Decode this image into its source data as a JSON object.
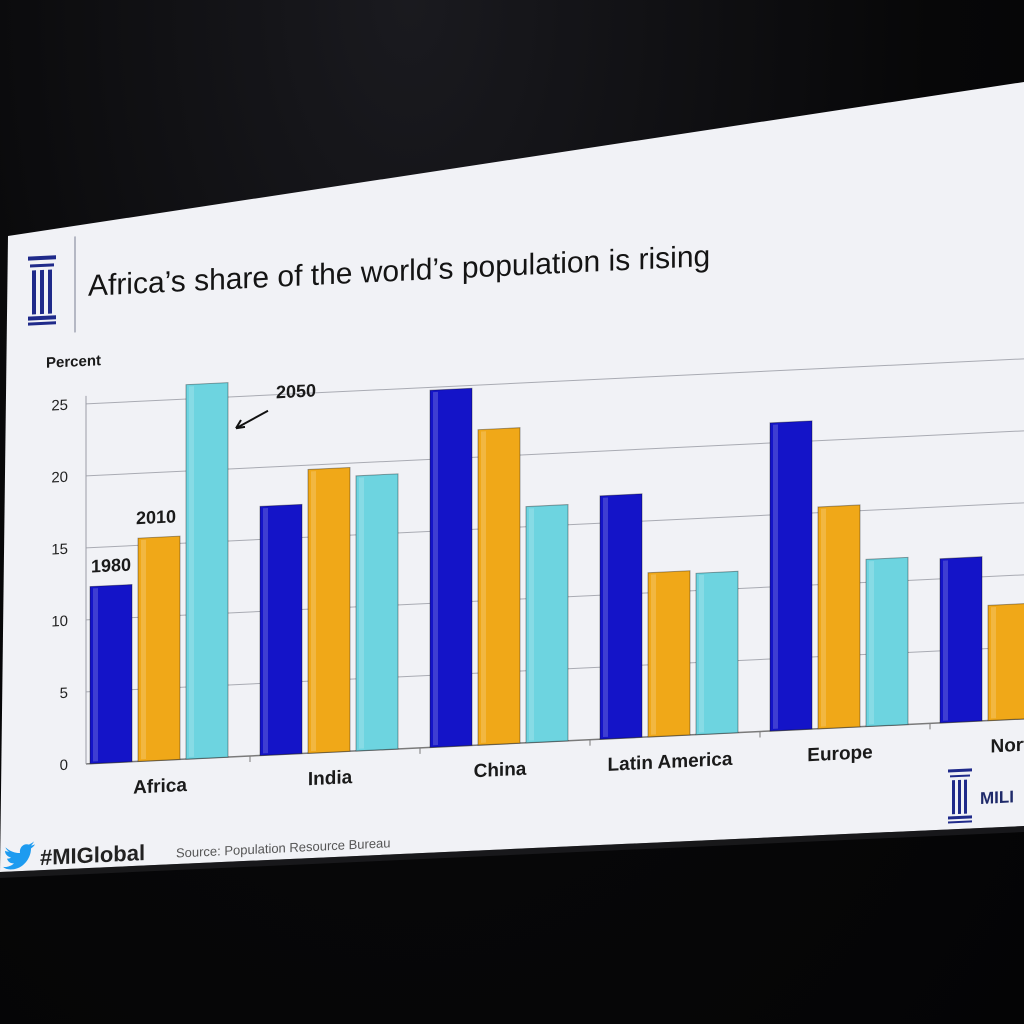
{
  "slide": {
    "title": "Africa’s share of the world’s population is rising",
    "hashtag": "#MIGlobal",
    "source": "Source: Population Resource Bureau",
    "brand_text": "MILI"
  },
  "colors": {
    "series_1980": "#1414c8",
    "series_2010": "#f0a818",
    "series_2050": "#6dd4e0",
    "logo": "#1f2a8a",
    "twitter": "#1d9bf0"
  },
  "icons": [
    "twitter-bird-icon",
    "institute-column-logo-icon"
  ],
  "chart_data": {
    "type": "bar",
    "title": "Africa’s share of the world’s population is rising",
    "ylabel": "Percent",
    "xlabel": "",
    "ylim": [
      0,
      25
    ],
    "yticks": [
      "0",
      "5",
      "10",
      "15",
      "20",
      "25"
    ],
    "grid": true,
    "categories": [
      "Africa",
      "India",
      "China",
      "Latin America",
      "Europe",
      "Nort"
    ],
    "series": [
      {
        "name": "1980",
        "values": [
          12.3,
          17.3,
          24.8,
          16.9,
          21.4,
          11.4
        ]
      },
      {
        "name": "2010",
        "values": [
          15.5,
          19.7,
          21.9,
          11.4,
          15.4,
          8
        ]
      },
      {
        "name": "2050",
        "values": [
          26.0,
          19.1,
          16.4,
          11.2,
          11.6,
          null
        ]
      }
    ],
    "annotations": [
      {
        "text": "1980"
      },
      {
        "text": "2010"
      },
      {
        "text": "2050"
      }
    ]
  }
}
